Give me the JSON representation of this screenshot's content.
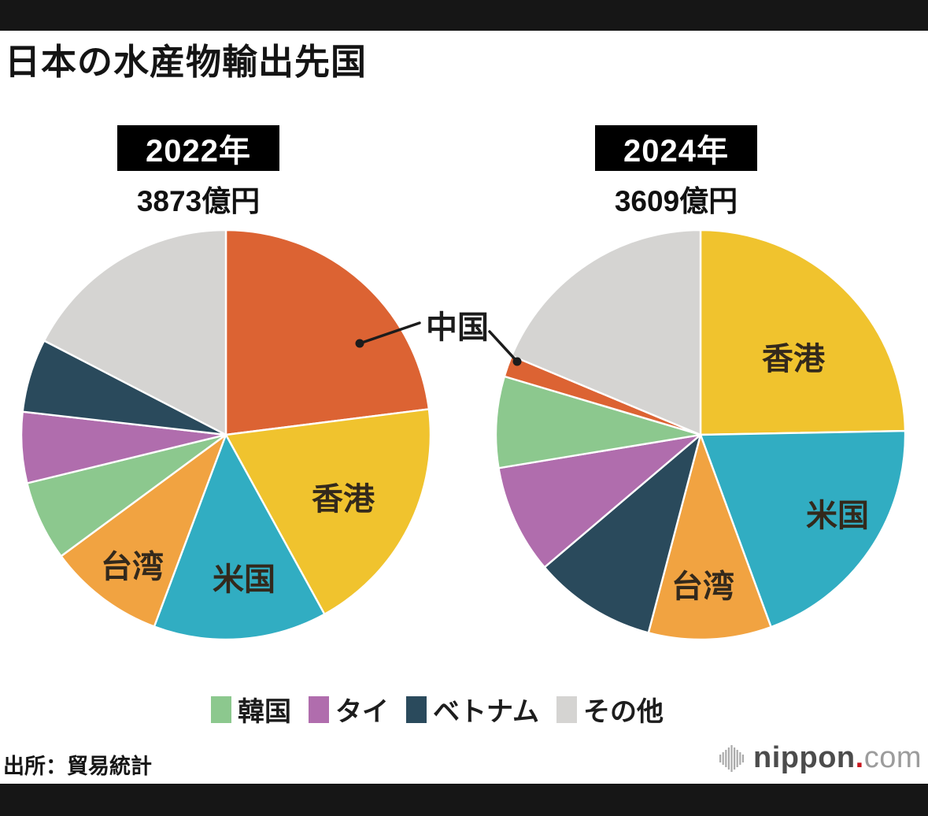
{
  "page": {
    "title": "日本の水産物輸出先国",
    "source": "出所：貿易統計",
    "logo": {
      "name": "nippon",
      "dot": ".",
      "suffix": "com"
    }
  },
  "callout": {
    "label": "中国"
  },
  "charts": [
    {
      "year_label": "2022年",
      "total_label": "3873億円",
      "labels": {
        "hk": "香港",
        "us": "米国",
        "tw": "台湾"
      },
      "slices": [
        {
          "id": "china",
          "label": "中国",
          "pct": 23.0,
          "color": "#dc6333"
        },
        {
          "id": "hongkong",
          "label": "香港",
          "pct": 19.0,
          "color": "#f0c32e"
        },
        {
          "id": "usa",
          "label": "米国",
          "pct": 13.7,
          "color": "#31adc2"
        },
        {
          "id": "taiwan",
          "label": "台湾",
          "pct": 9.2,
          "color": "#f1a341"
        },
        {
          "id": "korea",
          "label": "韓国",
          "pct": 6.3,
          "color": "#8cc88e"
        },
        {
          "id": "thailand",
          "label": "タイ",
          "pct": 5.6,
          "color": "#b06dad"
        },
        {
          "id": "vietnam",
          "label": "ベトナム",
          "pct": 5.8,
          "color": "#2a4a5c"
        },
        {
          "id": "others",
          "label": "その他",
          "pct": 17.4,
          "color": "#d5d4d2"
        }
      ]
    },
    {
      "year_label": "2024年",
      "total_label": "3609億円",
      "labels": {
        "hk": "香港",
        "us": "米国",
        "tw": "台湾"
      },
      "slices": [
        {
          "id": "hongkong",
          "label": "香港",
          "pct": 24.7,
          "color": "#f0c32e"
        },
        {
          "id": "usa",
          "label": "米国",
          "pct": 19.7,
          "color": "#31adc2"
        },
        {
          "id": "taiwan",
          "label": "台湾",
          "pct": 9.7,
          "color": "#f1a341"
        },
        {
          "id": "vietnam",
          "label": "ベトナム",
          "pct": 9.7,
          "color": "#2a4a5c"
        },
        {
          "id": "thailand",
          "label": "タイ",
          "pct": 8.6,
          "color": "#b06dad"
        },
        {
          "id": "korea",
          "label": "韓国",
          "pct": 7.2,
          "color": "#8cc88e"
        },
        {
          "id": "china",
          "label": "中国",
          "pct": 1.7,
          "color": "#dc6333"
        },
        {
          "id": "others",
          "label": "その他",
          "pct": 18.7,
          "color": "#d5d4d2"
        }
      ]
    }
  ],
  "legend": [
    {
      "id": "korea",
      "label": "韓国",
      "color": "#8cc88e"
    },
    {
      "id": "thailand",
      "label": "タイ",
      "color": "#b06dad"
    },
    {
      "id": "vietnam",
      "label": "ベトナム",
      "color": "#2a4a5c"
    },
    {
      "id": "others",
      "label": "その他",
      "color": "#d5d4d2"
    }
  ],
  "chart_data": [
    {
      "type": "pie",
      "title": "2022年",
      "total": "3873億円",
      "unit": "億円",
      "start_angle_deg": 0,
      "direction": "clockwise",
      "categories": [
        "中国",
        "香港",
        "米国",
        "台湾",
        "韓国",
        "タイ",
        "ベトナム",
        "その他"
      ],
      "values_percent": [
        23.0,
        19.0,
        13.7,
        9.2,
        6.3,
        5.6,
        5.8,
        17.4
      ],
      "colors": [
        "#dc6333",
        "#f0c32e",
        "#31adc2",
        "#f1a341",
        "#8cc88e",
        "#b06dad",
        "#2a4a5c",
        "#d5d4d2"
      ],
      "legend_position": "bottom"
    },
    {
      "type": "pie",
      "title": "2024年",
      "total": "3609億円",
      "unit": "億円",
      "start_angle_deg": 0,
      "direction": "clockwise",
      "categories": [
        "香港",
        "米国",
        "台湾",
        "ベトナム",
        "タイ",
        "韓国",
        "中国",
        "その他"
      ],
      "values_percent": [
        24.7,
        19.7,
        9.7,
        9.7,
        8.6,
        7.2,
        1.7,
        18.7
      ],
      "colors": [
        "#f0c32e",
        "#31adc2",
        "#f1a341",
        "#2a4a5c",
        "#b06dad",
        "#8cc88e",
        "#dc6333",
        "#d5d4d2"
      ],
      "legend_position": "bottom"
    }
  ]
}
